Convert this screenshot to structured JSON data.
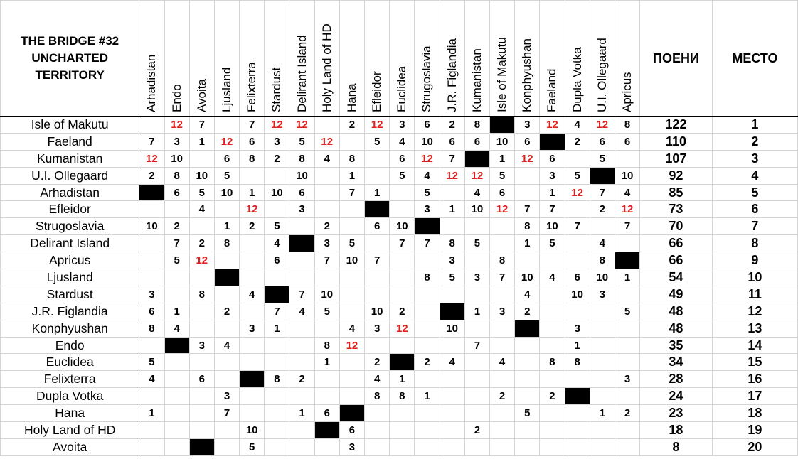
{
  "title_lines": [
    "THE BRIDGE #32",
    "UNCHARTED",
    "TERRITORY"
  ],
  "sum_header": "ПОЕНИ",
  "place_header": "МЕСТО",
  "highlight_color": "#e31c1c",
  "voters": [
    "Arhadistan",
    "Endo",
    "Avoita",
    "Ljusland",
    "Felixterra",
    "Stardust",
    "Delirant Island",
    "Holy Land of HD",
    "Hana",
    "Efleidor",
    "Euclidea",
    "Strugoslavia",
    "J.R. Figlandia",
    "Kumanistan",
    "Isle of Makutu",
    "Konphyushan",
    "Faeland",
    "Dupla Votka",
    "U.I. Ollegaard",
    "Apricus"
  ],
  "rows": [
    {
      "name": "Isle of Makutu",
      "scores": [
        "",
        "12",
        "7",
        "",
        "7",
        "12",
        "12",
        "",
        "2",
        "12",
        "3",
        "6",
        "2",
        "8",
        "X",
        "3",
        "12",
        "4",
        "12",
        "8"
      ],
      "total": "122",
      "rank": "1"
    },
    {
      "name": "Faeland",
      "scores": [
        "7",
        "3",
        "1",
        "12",
        "6",
        "3",
        "5",
        "12",
        "",
        "5",
        "4",
        "10",
        "6",
        "6",
        "10",
        "6",
        "X",
        "2",
        "6",
        "6"
      ],
      "total": "110",
      "rank": "2"
    },
    {
      "name": "Kumanistan",
      "scores": [
        "12",
        "10",
        "",
        "6",
        "8",
        "2",
        "8",
        "4",
        "8",
        "",
        "6",
        "12",
        "7",
        "X",
        "1",
        "12",
        "6",
        "",
        "5",
        ""
      ],
      "total": "107",
      "rank": "3"
    },
    {
      "name": "U.I. Ollegaard",
      "scores": [
        "2",
        "8",
        "10",
        "5",
        "",
        "",
        "10",
        "",
        "1",
        "",
        "5",
        "4",
        "12",
        "12",
        "5",
        "",
        "3",
        "5",
        "X",
        "10"
      ],
      "total": "92",
      "rank": "4"
    },
    {
      "name": "Arhadistan",
      "scores": [
        "X",
        "6",
        "5",
        "10",
        "1",
        "10",
        "6",
        "",
        "7",
        "1",
        "",
        "5",
        "",
        "4",
        "6",
        "",
        "1",
        "12",
        "7",
        "4"
      ],
      "total": "85",
      "rank": "5"
    },
    {
      "name": "Efleidor",
      "scores": [
        "",
        "",
        "4",
        "",
        "12",
        "",
        "3",
        "",
        "",
        "X",
        "",
        "3",
        "1",
        "10",
        "12",
        "7",
        "7",
        "",
        "2",
        "12"
      ],
      "total": "73",
      "rank": "6"
    },
    {
      "name": "Strugoslavia",
      "scores": [
        "10",
        "2",
        "",
        "1",
        "2",
        "5",
        "",
        "2",
        "",
        "6",
        "10",
        "X",
        "",
        "",
        "",
        "8",
        "10",
        "7",
        "",
        "7"
      ],
      "total": "70",
      "rank": "7"
    },
    {
      "name": "Delirant Island",
      "scores": [
        "",
        "7",
        "2",
        "8",
        "",
        "4",
        "X",
        "3",
        "5",
        "",
        "7",
        "7",
        "8",
        "5",
        "",
        "1",
        "5",
        "",
        "4",
        ""
      ],
      "total": "66",
      "rank": "8"
    },
    {
      "name": "Apricus",
      "scores": [
        "",
        "5",
        "12",
        "",
        "",
        "6",
        "",
        "7",
        "10",
        "7",
        "",
        "",
        "3",
        "",
        "8",
        "",
        "",
        "",
        "8",
        "X"
      ],
      "total": "66",
      "rank": "9"
    },
    {
      "name": "Ljusland",
      "scores": [
        "",
        "",
        "",
        "X",
        "",
        "",
        "",
        "",
        "",
        "",
        "",
        "8",
        "5",
        "3",
        "7",
        "10",
        "4",
        "6",
        "10",
        "1"
      ],
      "total": "54",
      "rank": "10"
    },
    {
      "name": "Stardust",
      "scores": [
        "3",
        "",
        "8",
        "",
        "4",
        "X",
        "7",
        "10",
        "",
        "",
        "",
        "",
        "",
        "",
        "",
        "4",
        "",
        "10",
        "3",
        ""
      ],
      "total": "49",
      "rank": "11"
    },
    {
      "name": "J.R. Figlandia",
      "scores": [
        "6",
        "1",
        "",
        "2",
        "",
        "7",
        "4",
        "5",
        "",
        "10",
        "2",
        "",
        "X",
        "1",
        "3",
        "2",
        "",
        "",
        "",
        "5"
      ],
      "total": "48",
      "rank": "12"
    },
    {
      "name": "Konphyushan",
      "scores": [
        "8",
        "4",
        "",
        "",
        "3",
        "1",
        "",
        "",
        "4",
        "3",
        "12",
        "",
        "10",
        "",
        "",
        "X",
        "",
        "3",
        "",
        ""
      ],
      "total": "48",
      "rank": "13"
    },
    {
      "name": "Endo",
      "scores": [
        "",
        "X",
        "3",
        "4",
        "",
        "",
        "",
        "8",
        "12",
        "",
        "",
        "",
        "",
        "7",
        "",
        "",
        "",
        "1",
        "",
        ""
      ],
      "total": "35",
      "rank": "14"
    },
    {
      "name": "Euclidea",
      "scores": [
        "5",
        "",
        "",
        "",
        "",
        "",
        "",
        "1",
        "",
        "2",
        "X",
        "2",
        "4",
        "",
        "4",
        "",
        "8",
        "8",
        "",
        ""
      ],
      "total": "34",
      "rank": "15"
    },
    {
      "name": "Felixterra",
      "scores": [
        "4",
        "",
        "6",
        "",
        "X",
        "8",
        "2",
        "",
        "",
        "4",
        "1",
        "",
        "",
        "",
        "",
        "",
        "",
        "",
        "",
        "3"
      ],
      "total": "28",
      "rank": "16"
    },
    {
      "name": "Dupla Votka",
      "scores": [
        "",
        "",
        "",
        "3",
        "",
        "",
        "",
        "",
        "",
        "8",
        "8",
        "1",
        "",
        "",
        "2",
        "",
        "2",
        "X",
        "",
        ""
      ],
      "total": "24",
      "rank": "17"
    },
    {
      "name": "Hana",
      "scores": [
        "1",
        "",
        "",
        "7",
        "",
        "",
        "1",
        "6",
        "X",
        "",
        "",
        "",
        "",
        "",
        "",
        "5",
        "",
        "",
        "1",
        "2"
      ],
      "total": "23",
      "rank": "18"
    },
    {
      "name": "Holy Land of HD",
      "scores": [
        "",
        "",
        "",
        "",
        "10",
        "",
        "",
        "X",
        "6",
        "",
        "",
        "",
        "",
        "2",
        "",
        "",
        "",
        "",
        "",
        ""
      ],
      "total": "18",
      "rank": "19"
    },
    {
      "name": "Avoita",
      "scores": [
        "",
        "",
        "X",
        "",
        "5",
        "",
        "",
        "",
        "3",
        "",
        "",
        "",
        "",
        "",
        "",
        "",
        "",
        "",
        "",
        ""
      ],
      "total": "8",
      "rank": "20"
    }
  ]
}
